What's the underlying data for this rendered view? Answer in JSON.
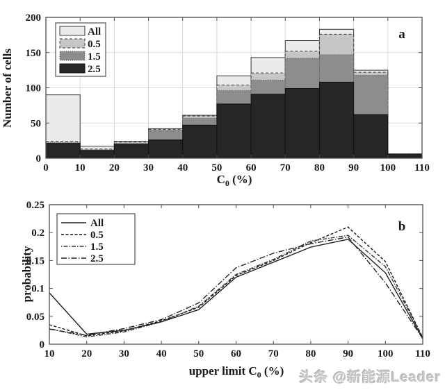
{
  "figure": {
    "background": "#ffffff",
    "watermark": "头条 @新能源Leader",
    "text_color": "#1a1a1a",
    "grid_color": "#d9d9d9",
    "frame_color": "#4d4d4d"
  },
  "chart_data": [
    {
      "id": "a",
      "type": "bar",
      "panel_label": "a",
      "xlabel": {
        "base": "C",
        "sub": "0",
        "suffix": " (%)"
      },
      "ylabel": "Number of cells",
      "xlim": [
        0,
        110
      ],
      "ylim": [
        0,
        200
      ],
      "x_ticks": [
        0,
        10,
        20,
        30,
        40,
        50,
        60,
        70,
        80,
        90,
        100,
        110
      ],
      "y_ticks": [
        0,
        50,
        100,
        150,
        200
      ],
      "grid": true,
      "legend_position": "top-left",
      "bin_edges": [
        0,
        10,
        20,
        30,
        40,
        50,
        60,
        70,
        80,
        90,
        100,
        110
      ],
      "series": [
        {
          "name": "All",
          "fill": "#ebebeb",
          "edge": "#3a3a3a",
          "edge_dash": "",
          "values": [
            90,
            17,
            24,
            42,
            61,
            117,
            143,
            167,
            183,
            125,
            6
          ]
        },
        {
          "name": "0.5",
          "fill": "#c6c6c6",
          "edge": "#3a3a3a",
          "edge_dash": "4 3",
          "values": [
            24,
            13,
            23,
            41,
            60,
            104,
            121,
            152,
            176,
            122,
            6
          ]
        },
        {
          "name": "1.5",
          "fill": "#8d8d8d",
          "edge": "#5a5a5a",
          "edge_dash": "1 2",
          "values": [
            22,
            12,
            21,
            40,
            57,
            96,
            111,
            142,
            147,
            118,
            6
          ]
        },
        {
          "name": "2.5",
          "fill": "#262626",
          "edge": "#111111",
          "edge_dash": "",
          "values": [
            21,
            11,
            20,
            26,
            47,
            77,
            91,
            99,
            108,
            62,
            6
          ]
        }
      ]
    },
    {
      "id": "b",
      "type": "line",
      "panel_label": "b",
      "xlabel": {
        "base": "upper limit C",
        "sub": "0",
        "suffix": " (%)"
      },
      "ylabel": "probability",
      "xlim": [
        10,
        110
      ],
      "ylim": [
        0,
        0.25
      ],
      "x_ticks": [
        10,
        20,
        30,
        40,
        50,
        60,
        70,
        80,
        90,
        100,
        110
      ],
      "y_ticks": [
        0,
        0.05,
        0.1,
        0.15,
        0.2,
        0.25
      ],
      "y_tick_labels": [
        "0",
        "0.05",
        "0.1",
        "0.15",
        "0.2",
        "0.25"
      ],
      "grid": false,
      "legend_position": "top-left",
      "x": [
        10,
        20,
        30,
        40,
        50,
        60,
        70,
        80,
        90,
        100,
        110
      ],
      "series": [
        {
          "name": "All",
          "color": "#222222",
          "dash": "",
          "values": [
            0.092,
            0.018,
            0.025,
            0.04,
            0.062,
            0.12,
            0.147,
            0.174,
            0.188,
            0.128,
            0.01
          ]
        },
        {
          "name": "0.5",
          "color": "#111111",
          "dash": "4 2.5",
          "values": [
            0.035,
            0.015,
            0.024,
            0.042,
            0.066,
            0.123,
            0.15,
            0.182,
            0.21,
            0.148,
            0.012
          ]
        },
        {
          "name": "1.5",
          "color": "#333333",
          "dash": "1.5 2 6 2",
          "values": [
            0.028,
            0.013,
            0.022,
            0.04,
            0.068,
            0.125,
            0.152,
            0.185,
            0.195,
            0.139,
            0.012
          ]
        },
        {
          "name": "2.5",
          "color": "#222222",
          "dash": "8 2.5 1.5 2.5",
          "values": [
            0.027,
            0.016,
            0.028,
            0.044,
            0.074,
            0.137,
            0.163,
            0.18,
            0.192,
            0.11,
            0.01
          ]
        }
      ]
    }
  ]
}
